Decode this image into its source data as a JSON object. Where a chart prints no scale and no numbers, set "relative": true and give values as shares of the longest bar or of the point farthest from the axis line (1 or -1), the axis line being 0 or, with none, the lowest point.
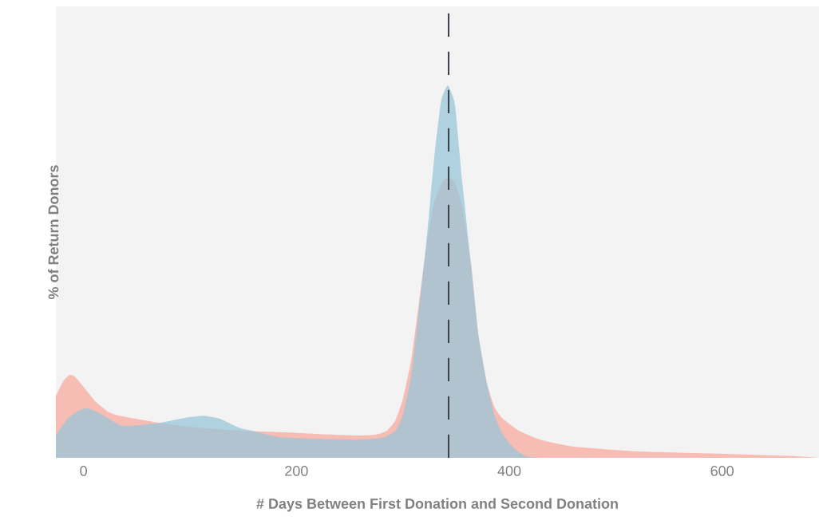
{
  "chart_data": {
    "type": "area",
    "xlabel": "# Days Between First Donation and Second Donation",
    "ylabel": "% of Return Donors",
    "relative": true,
    "xlim": [
      -26,
      691
    ],
    "xticks": [
      0,
      200,
      400,
      600
    ],
    "grid": false,
    "series": [
      {
        "color": "#f8a99e",
        "x": [
          -26,
          -19,
          -13,
          -8,
          0,
          11,
          23,
          34,
          71,
          109,
          146,
          184,
          221,
          259,
          274,
          285,
          293,
          300,
          308,
          315,
          323,
          330,
          338,
          343,
          349,
          356,
          364,
          371,
          379,
          386,
          394,
          409,
          431,
          461,
          521,
          596,
          671,
          691
        ],
        "values": [
          0.167,
          0.206,
          0.223,
          0.218,
          0.191,
          0.152,
          0.124,
          0.113,
          0.094,
          0.081,
          0.073,
          0.069,
          0.064,
          0.06,
          0.062,
          0.073,
          0.101,
          0.158,
          0.266,
          0.415,
          0.585,
          0.693,
          0.746,
          0.754,
          0.741,
          0.672,
          0.522,
          0.33,
          0.201,
          0.137,
          0.105,
          0.073,
          0.047,
          0.03,
          0.017,
          0.011,
          0.004,
          0
        ]
      },
      {
        "color": "#99c5d8",
        "x": [
          -26,
          -15,
          -4,
          4,
          15,
          34,
          45,
          71,
          94,
          113,
          128,
          146,
          161,
          184,
          221,
          259,
          281,
          293,
          300,
          308,
          315,
          323,
          330,
          336,
          341,
          343,
          349,
          356,
          364,
          371,
          379,
          386,
          394,
          405,
          416,
          431
        ],
        "values": [
          0.06,
          0.105,
          0.128,
          0.133,
          0.12,
          0.088,
          0.086,
          0.094,
          0.107,
          0.113,
          0.105,
          0.081,
          0.071,
          0.056,
          0.051,
          0.049,
          0.054,
          0.073,
          0.116,
          0.223,
          0.394,
          0.608,
          0.822,
          0.961,
          0.998,
          1,
          0.95,
          0.738,
          0.522,
          0.33,
          0.201,
          0.116,
          0.062,
          0.024,
          0.004,
          0
        ]
      }
    ],
    "ref_lines": [
      {
        "axis": "x",
        "value": 343,
        "color": "#3d4450",
        "line_style": "dashed"
      }
    ]
  }
}
